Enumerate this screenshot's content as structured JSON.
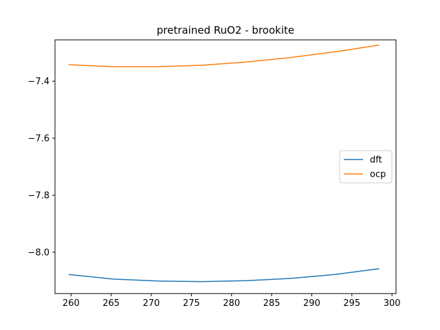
{
  "chart_data": {
    "type": "line",
    "title": "pretrained RuO2 - brookite",
    "xlabel": "",
    "ylabel": "",
    "xlim": [
      258,
      300.5
    ],
    "ylim": [
      -8.145,
      -7.255
    ],
    "xticks": [
      260,
      265,
      270,
      275,
      280,
      285,
      290,
      295,
      300
    ],
    "yticks": [
      -8.0,
      -7.8,
      -7.6,
      -7.4
    ],
    "ytick_labels": [
      "−8.0",
      "−7.8",
      "−7.6",
      "−7.4"
    ],
    "grid": false,
    "legend_placement": "center-right",
    "series": [
      {
        "name": "dft",
        "color": "#1f77b4",
        "x": [
          259.7,
          265.2,
          270.8,
          276.3,
          281.8,
          287.3,
          292.9,
          298.4
        ],
        "y": [
          -8.078,
          -8.094,
          -8.101,
          -8.103,
          -8.1,
          -8.092,
          -8.078,
          -8.058
        ]
      },
      {
        "name": "ocp",
        "color": "#ff7f0e",
        "x": [
          259.7,
          265.2,
          270.8,
          276.3,
          281.8,
          287.3,
          292.9,
          298.4
        ],
        "y": [
          -7.342,
          -7.349,
          -7.349,
          -7.344,
          -7.333,
          -7.317,
          -7.297,
          -7.273
        ]
      }
    ]
  }
}
